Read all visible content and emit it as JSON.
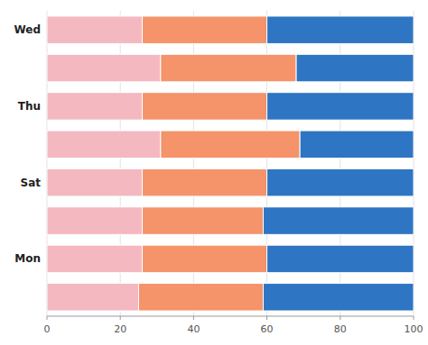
{
  "chart_data": {
    "type": "bar",
    "orientation": "horizontal",
    "stacked": true,
    "grid": true,
    "categories": [
      "Wed",
      null,
      "Thu",
      null,
      "Sat",
      null,
      "Mon",
      null
    ],
    "series": [
      {
        "color": "#f4b8c1",
        "values": [
          26,
          31,
          26,
          31,
          26,
          26,
          26,
          25
        ]
      },
      {
        "color": "#f5936a",
        "values": [
          34,
          37,
          34,
          38,
          34,
          33,
          34,
          34
        ]
      },
      {
        "color": "#2e75c3",
        "values": [
          40,
          32,
          40,
          31,
          40,
          41,
          40,
          41
        ]
      }
    ],
    "xlim": [
      0,
      100
    ],
    "xticks": [
      0,
      20,
      40,
      60,
      80,
      100
    ]
  }
}
